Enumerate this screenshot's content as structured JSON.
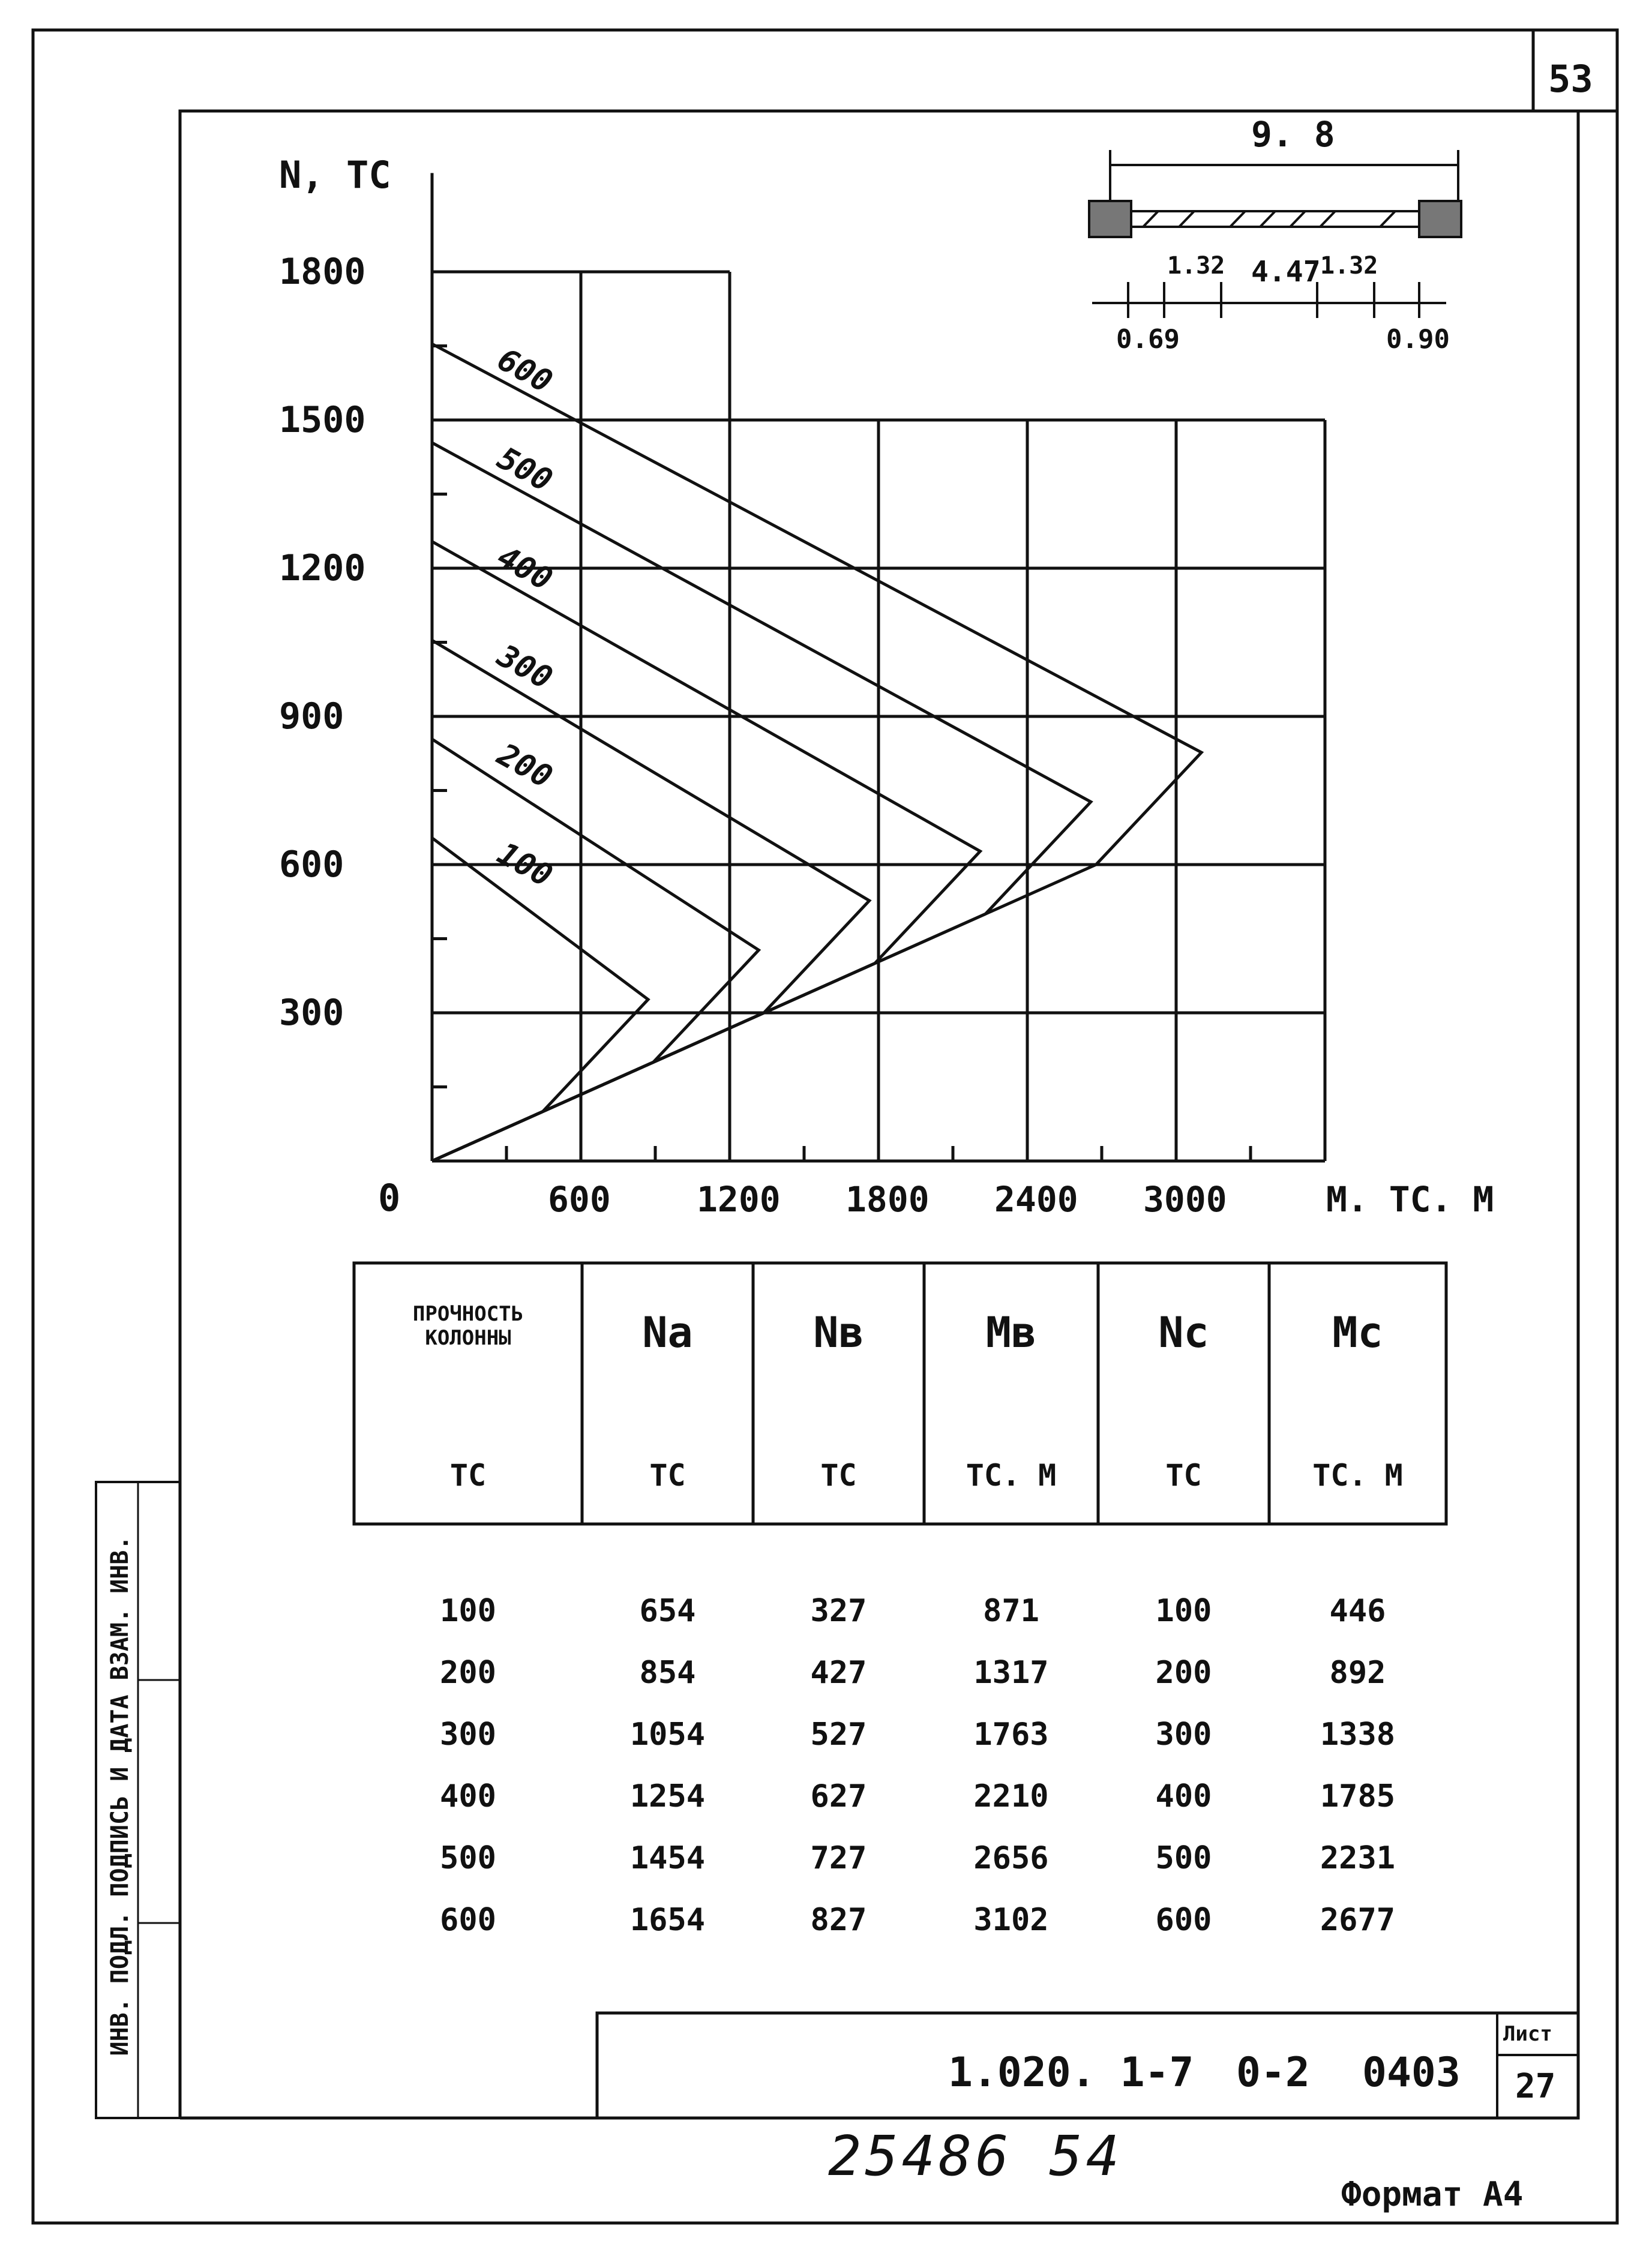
{
  "sheet": {
    "page_number": "53",
    "code": "1.020. 1-7",
    "series": "0-2",
    "issue": "0403",
    "list_label": "Лист",
    "list_number": "27",
    "handwritten": "25486 54",
    "format": "Формат А4",
    "side_stamp": "ИНВ. ПОДЛ.  ПОДПИСЬ И ДАТА  ВЗАМ. ИНВ."
  },
  "section_sketch": {
    "overall": "9. 8",
    "parts": [
      "1.32",
      "4.47",
      "1.32"
    ],
    "ends": [
      "0.69",
      "0.90"
    ]
  },
  "chart_data": {
    "type": "line",
    "xlabel": "М. ТС. М",
    "ylabel": "N, ТС",
    "origin_label": "0",
    "x_ticks": [
      "600",
      "1200",
      "1800",
      "2400",
      "3000"
    ],
    "y_ticks": [
      "300",
      "600",
      "900",
      "1200",
      "1500",
      "1800"
    ],
    "xlim": [
      0,
      3600
    ],
    "ylim": [
      0,
      1800
    ],
    "grid": true,
    "series": [
      {
        "name": "100",
        "points": [
          [
            0,
            654
          ],
          [
            871,
            327
          ],
          [
            446,
            100
          ],
          [
            0,
            0
          ]
        ]
      },
      {
        "name": "200",
        "points": [
          [
            0,
            854
          ],
          [
            1317,
            427
          ],
          [
            892,
            200
          ],
          [
            0,
            0
          ]
        ]
      },
      {
        "name": "300",
        "points": [
          [
            0,
            1054
          ],
          [
            1763,
            527
          ],
          [
            1338,
            300
          ],
          [
            0,
            0
          ]
        ]
      },
      {
        "name": "400",
        "points": [
          [
            0,
            1254
          ],
          [
            2210,
            627
          ],
          [
            1785,
            400
          ],
          [
            0,
            0
          ]
        ]
      },
      {
        "name": "500",
        "points": [
          [
            0,
            1454
          ],
          [
            2656,
            727
          ],
          [
            2231,
            500
          ],
          [
            0,
            0
          ]
        ]
      },
      {
        "name": "600",
        "points": [
          [
            0,
            1654
          ],
          [
            3102,
            827
          ],
          [
            2677,
            600
          ],
          [
            0,
            0
          ]
        ]
      }
    ]
  },
  "table": {
    "headers": [
      {
        "name": "ПРОЧНОСТЬ КОЛОННЫ",
        "unit": "ТС"
      },
      {
        "name": "Nа",
        "unit": "ТС"
      },
      {
        "name": "Nв",
        "unit": "ТС"
      },
      {
        "name": "Мв",
        "unit": "ТС. М"
      },
      {
        "name": "Nс",
        "unit": "ТС"
      },
      {
        "name": "Мс",
        "unit": "ТС. М"
      }
    ],
    "rows": [
      [
        "100",
        "654",
        "327",
        "871",
        "100",
        "446"
      ],
      [
        "200",
        "854",
        "427",
        "1317",
        "200",
        "892"
      ],
      [
        "300",
        "1054",
        "527",
        "1763",
        "300",
        "1338"
      ],
      [
        "400",
        "1254",
        "627",
        "2210",
        "400",
        "1785"
      ],
      [
        "500",
        "1454",
        "727",
        "2656",
        "500",
        "2231"
      ],
      [
        "600",
        "1654",
        "827",
        "3102",
        "600",
        "2677"
      ]
    ]
  }
}
